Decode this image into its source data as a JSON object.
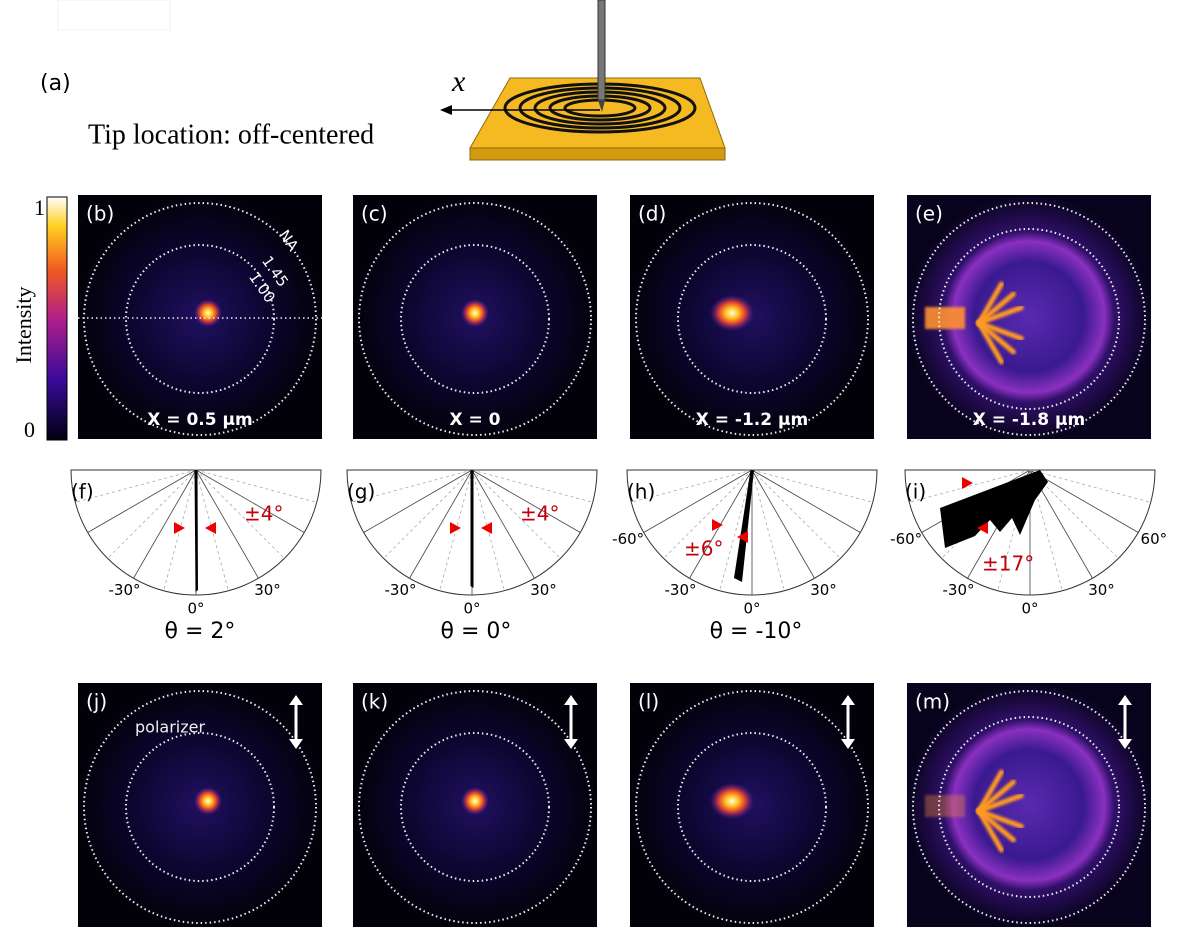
{
  "header": {
    "label": "(a)",
    "axis": "x",
    "caption": "Tip location: off-centered"
  },
  "colorbar": {
    "max": "1",
    "min": "0",
    "label": "Intensity"
  },
  "na_labels": {
    "title": "NA",
    "outer": "1.45",
    "inner": "1.00"
  },
  "images_top": [
    {
      "label": "(b)",
      "position": "X = 0.5 µm"
    },
    {
      "label": "(c)",
      "position": "X = 0"
    },
    {
      "label": "(d)",
      "position": "X = -1.2 µm"
    },
    {
      "label": "(e)",
      "position": "X = -1.8 µm"
    }
  ],
  "polar": [
    {
      "label": "(f)",
      "ticks": [
        "-30°",
        "0°",
        "30°"
      ],
      "spread": "±4°",
      "theta": "θ = 2°"
    },
    {
      "label": "(g)",
      "ticks": [
        "-30°",
        "0°",
        "30°"
      ],
      "spread": "±4°",
      "theta": "θ = 0°"
    },
    {
      "label": "(h)",
      "ticks": [
        "-60°",
        "-30°",
        "0°",
        "30°"
      ],
      "spread": "±6°",
      "theta": "θ = -10°"
    },
    {
      "label": "(i)",
      "ticks": [
        "-60°",
        "-30°",
        "0°",
        "30°",
        "60°"
      ],
      "spread": "±17°"
    }
  ],
  "images_bottom": [
    {
      "label": "(j)"
    },
    {
      "label": "(k)"
    },
    {
      "label": "(l)"
    },
    {
      "label": "(m)"
    }
  ],
  "polarizer": "polarizer"
}
